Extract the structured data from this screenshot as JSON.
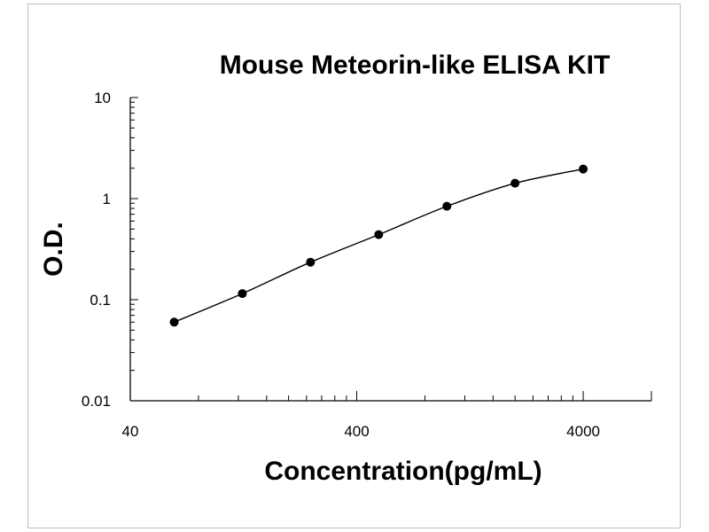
{
  "chart_data": {
    "type": "scatter",
    "title": "Mouse Meteorin-like ELISA KIT",
    "xlabel": "Concentration(pg/mL)",
    "ylabel": "O.D.",
    "x_scale": "log",
    "y_scale": "log",
    "xlim": [
      40,
      8000
    ],
    "ylim": [
      0.01,
      10
    ],
    "x_ticks": [
      "40",
      "400",
      "4000"
    ],
    "y_ticks": [
      "0.01",
      "0.1",
      "1",
      "10"
    ],
    "grid": false,
    "series": [
      {
        "x": [
          62.5,
          125,
          250,
          500,
          1000,
          2000,
          4000
        ],
        "y": [
          0.06,
          0.115,
          0.235,
          0.44,
          0.84,
          1.42,
          1.96
        ]
      }
    ],
    "colors": {
      "line": "#000000",
      "point": "#000000",
      "axis": "#000000"
    }
  }
}
